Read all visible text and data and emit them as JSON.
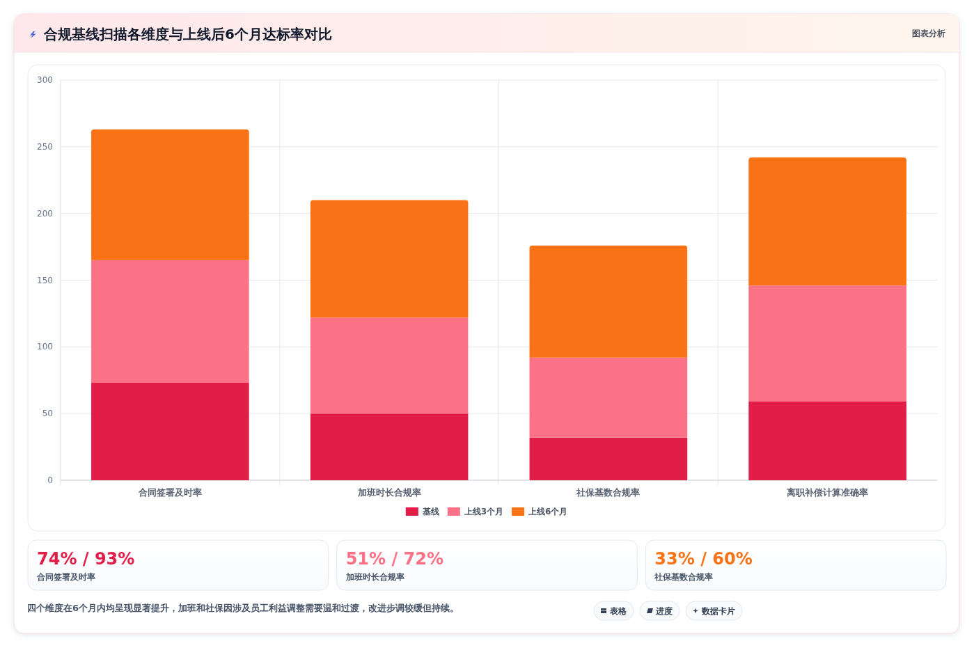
{
  "chart_data": [
    {
      "type": "bar",
      "title": "合规基线扫描各维度与上线后6个月达标率对比",
      "annotations": [
        "图表分析"
      ],
      "categories": [
        "合同签署及时率",
        "加班时长合规率",
        "社保基数合规率",
        "离职补偿计算准确率"
      ],
      "series": [
        {
          "name": "基线",
          "color": "#e11d48",
          "values": [
            73,
            50,
            32,
            59
          ]
        },
        {
          "name": "上线3个月",
          "color": "#fb7185",
          "values": [
            92,
            72,
            60,
            87
          ]
        },
        {
          "name": "上线6个月",
          "color": "#f97316",
          "values": [
            98,
            88,
            84,
            96
          ]
        }
      ],
      "stacked": true,
      "ylim": [
        0,
        300
      ],
      "yticks": [
        0,
        50,
        100,
        150,
        200,
        250,
        300
      ],
      "grid": true,
      "legend": "bottom"
    },
    {
      "type": "other",
      "title": "74% / 93%",
      "subtitle": "合同签署及时率",
      "color": "#e11d48"
    },
    {
      "type": "other",
      "title": "51% / 72%",
      "subtitle": "加班时长合规率",
      "color": "#fb7185"
    },
    {
      "type": "other",
      "title": "33% / 60%",
      "subtitle": "社保基数合规率",
      "color": "#f97316"
    },
    {
      "type": "other",
      "annotations": [
        "四个维度在6个月内均呈现显著提升，加班和社保因涉及员工利益调整需要温和过渡，改进步调较缓但持续。",
        "表格",
        "进度",
        "数据卡片"
      ]
    }
  ]
}
